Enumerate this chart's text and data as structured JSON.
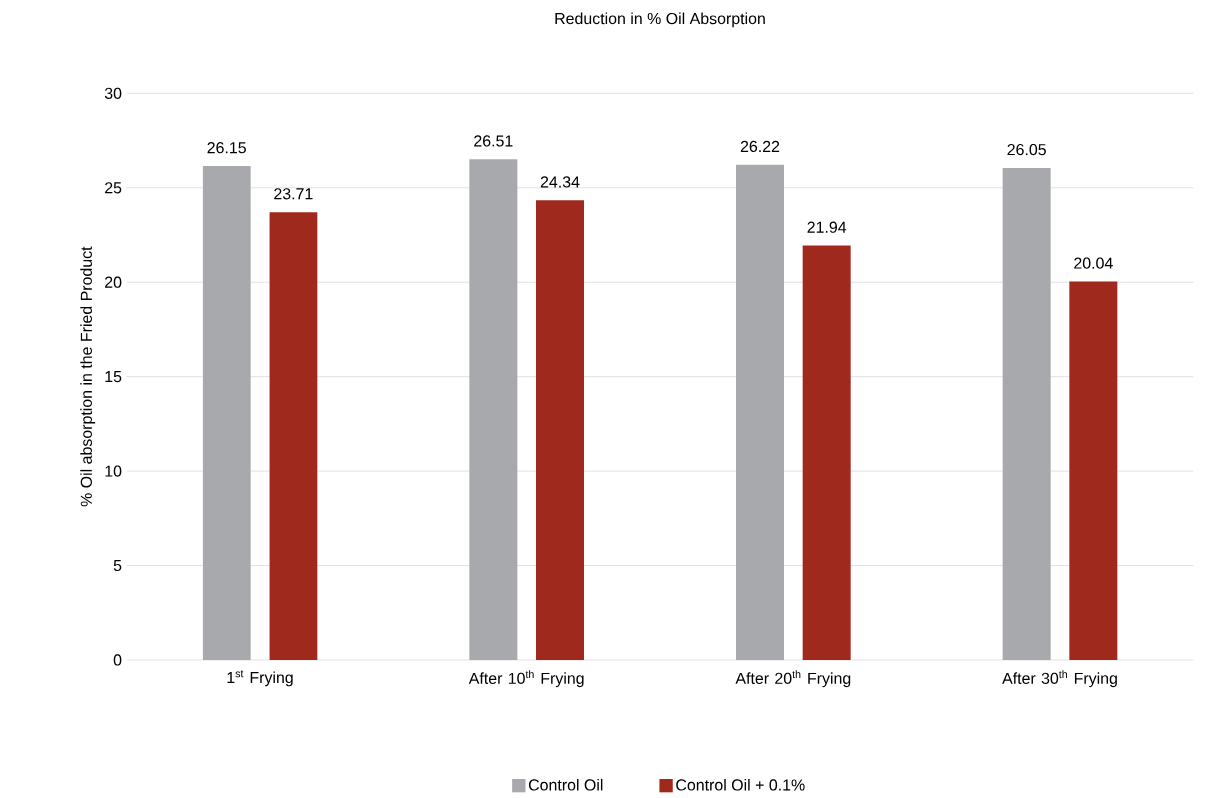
{
  "chart_data": {
    "type": "bar",
    "title": "Reduction in % Oil Absorption",
    "ylabel": "% Oil absorption in the Fried Product",
    "categories": [
      "1$^{st}$ Frying",
      "After 10$^{th}$ Frying",
      "After 20$^{th}$ Frying",
      "After 30$^{th}$ Frying"
    ],
    "series": [
      {
        "name": "Control Oil",
        "color": "#a7a9ac",
        "values": [
          26.15,
          26.51,
          26.22,
          26.05
        ]
      },
      {
        "name": "Control Oil + 0.1%",
        "color": "#a0291e",
        "values": [
          23.71,
          24.34,
          21.94,
          20.04
        ]
      }
    ],
    "ylim": [
      0,
      30
    ],
    "yticks": [
      0,
      5,
      10,
      15,
      20,
      25,
      30
    ],
    "grid": "y",
    "legend": "bottom",
    "data_labels": true
  }
}
